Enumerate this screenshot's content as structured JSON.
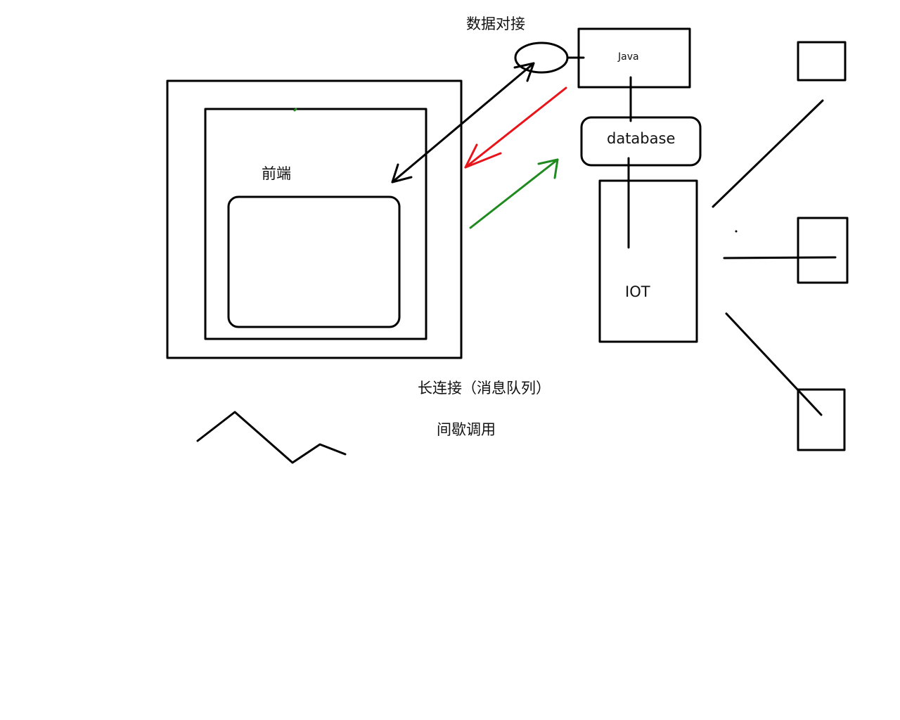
{
  "labels": {
    "data_docking": "数据对接",
    "java": "Java",
    "database": "database",
    "frontend": "前端",
    "iot": "IOT",
    "long_connection": "长连接（消息队列）",
    "intermittent_call": "间歇调用"
  },
  "colors": {
    "stroke": "#000000",
    "red_arrow": "#e8141a",
    "green_arrow": "#1f8a1f",
    "background": "#ffffff"
  }
}
